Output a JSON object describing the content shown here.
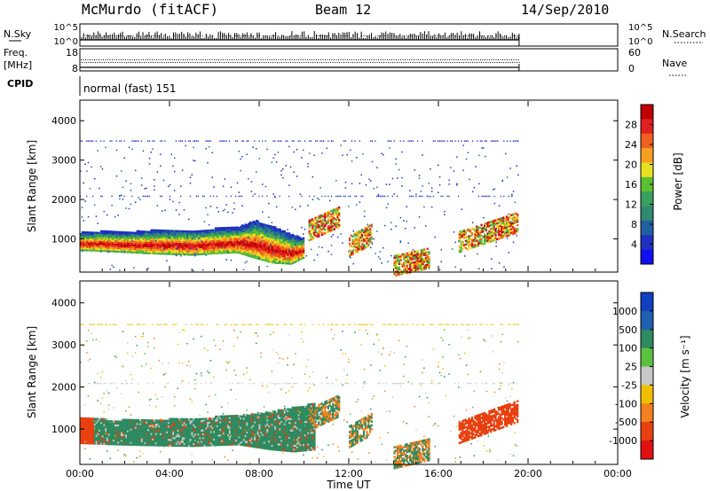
{
  "header": {
    "station": "McMurdo (fitACF)",
    "beam": "Beam 12",
    "date": "14/Sep/2010"
  },
  "aux_panel": {
    "nsky_label": "N.Sky",
    "nsky_ticks": [
      "10^5",
      "10^0"
    ],
    "nsearch_label": "N.Search",
    "nsearch_ticks": [
      "10^5",
      "10^0"
    ],
    "freq_label": "Freq.",
    "freq_unit": "[MHz]",
    "freq_ticks": [
      "18",
      "8"
    ],
    "nave_label": "Nave",
    "nave_ticks": [
      "60",
      "0"
    ],
    "cpid_label": "CPID",
    "cpid_value": "normal (fast) 151"
  },
  "chart_data": [
    {
      "type": "heatmap",
      "name": "power",
      "ylabel": "Slant Range [km]",
      "xlabel": "Time UT",
      "x_range_hours": [
        0,
        24
      ],
      "ylim": [
        180,
        4500
      ],
      "yticks": [
        1000,
        2000,
        3000,
        4000
      ],
      "ytick_labels": [
        "1000",
        "2000",
        "3000",
        "4000"
      ],
      "xtick_labels": [
        "00:00",
        "04:00",
        "08:00",
        "12:00",
        "16:00",
        "20:00",
        "00:00"
      ],
      "data_end_hour": 19.6,
      "colorbar": {
        "label": "Power [dB]",
        "tick_labels": [
          "4",
          "8",
          "12",
          "16",
          "20",
          "24",
          "28"
        ],
        "colors": [
          "#1010f0",
          "#2030c0",
          "#2060a0",
          "#2f8a70",
          "#3aa060",
          "#5cc030",
          "#e8e020",
          "#f5a020",
          "#f06020",
          "#e02020",
          "#c00000"
        ]
      },
      "main_band_km": [
        [
          0.0,
          700,
          1150
        ],
        [
          1.0,
          680,
          1180
        ],
        [
          2.0,
          650,
          1150
        ],
        [
          3.0,
          620,
          1200
        ],
        [
          4.0,
          600,
          1220
        ],
        [
          5.0,
          580,
          1200
        ],
        [
          6.0,
          620,
          1250
        ],
        [
          7.0,
          640,
          1280
        ],
        [
          7.8,
          500,
          1450
        ],
        [
          8.6,
          380,
          1300
        ],
        [
          9.4,
          350,
          1100
        ],
        [
          10.0,
          520,
          1000
        ]
      ]
    },
    {
      "type": "heatmap",
      "name": "velocity",
      "ylabel": "Slant Range [km]",
      "xlabel": "Time UT",
      "x_range_hours": [
        0,
        24
      ],
      "ylim": [
        180,
        4500
      ],
      "yticks": [
        1000,
        2000,
        3000,
        4000
      ],
      "ytick_labels": [
        "1000",
        "2000",
        "3000",
        "4000"
      ],
      "xtick_labels": [
        "00:00",
        "04:00",
        "08:00",
        "12:00",
        "16:00",
        "20:00",
        "00:00"
      ],
      "data_end_hour": 19.6,
      "colorbar": {
        "label": "Velocity [m s⁻¹]",
        "tick_labels": [
          "1000",
          "500",
          "100",
          "25",
          "-25",
          "-100",
          "-500",
          "-1000"
        ],
        "colors": [
          "#1040c0",
          "#2060b0",
          "#2e8a60",
          "#5cc040",
          "#c8c8c8",
          "#f0c000",
          "#f08020",
          "#e84010",
          "#e01010"
        ]
      },
      "main_band_km": [
        [
          0.0,
          650,
          1250
        ],
        [
          1.5,
          620,
          1200
        ],
        [
          3.0,
          600,
          1200
        ],
        [
          5.0,
          580,
          1250
        ],
        [
          7.0,
          620,
          1300
        ],
        [
          8.5,
          500,
          1400
        ],
        [
          9.5,
          450,
          1500
        ],
        [
          10.5,
          500,
          1600
        ]
      ]
    }
  ]
}
